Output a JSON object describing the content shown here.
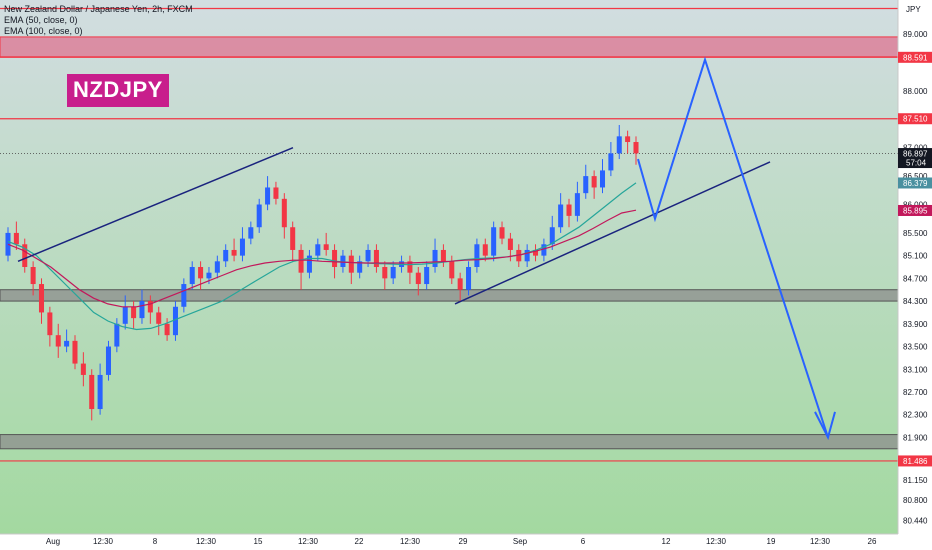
{
  "header": {
    "title": "New Zealand Dollar / Japanese Yen, 2h, FXCM",
    "indicators": [
      "EMA (50, close, 0)",
      "EMA (100, close, 0)"
    ]
  },
  "watermark": "NZDJPY",
  "colors": {
    "up": "#2962ff",
    "down": "#f23645",
    "ema50": "#26a69a",
    "ema100": "#c2185b",
    "resistance_line": "#f23645",
    "zone_pink": "#e06c8c",
    "zone_gray": "#8c8c8c",
    "bg_top": "#d2dde1",
    "bg_bottom": "#a3d9a0",
    "trendline": "#1a237e",
    "projection": "#2962ff",
    "current_price_tag": "#131722",
    "ema50_tag": "#4a90a0",
    "ema100_tag": "#c2185b"
  },
  "chart_data": {
    "type": "candlestick",
    "symbol": "NZDJPY",
    "timeframe": "2h",
    "ylim": [
      80.2,
      89.6
    ],
    "y_axis_unit": "JPY",
    "y_ticks": [
      "89.000",
      "88.000",
      "87.000",
      "86.500",
      "86.000",
      "85.500",
      "85.100",
      "84.700",
      "84.300",
      "83.900",
      "83.500",
      "83.100",
      "82.700",
      "82.300",
      "81.900",
      "81.150",
      "80.800",
      "80.440"
    ],
    "x_ticks": [
      "Aug",
      "12:30",
      "8",
      "12:30",
      "15",
      "12:30",
      "22",
      "12:30",
      "29",
      "Sep",
      "6",
      "12",
      "12:30",
      "19",
      "12:30",
      "26"
    ],
    "price_tags": [
      {
        "label": "88.591",
        "value": 88.591,
        "kind": "level"
      },
      {
        "label": "87.510",
        "value": 87.51,
        "kind": "level"
      },
      {
        "label": "86.897",
        "value": 86.897,
        "kind": "current",
        "sub": "57:04"
      },
      {
        "label": "86.379",
        "value": 86.379,
        "kind": "ema50"
      },
      {
        "label": "85.895",
        "value": 85.895,
        "kind": "ema100"
      },
      {
        "label": "81.486",
        "value": 81.486,
        "kind": "level"
      }
    ],
    "horizontal_levels": [
      89.45,
      88.591,
      87.51,
      81.486
    ],
    "zones": [
      {
        "from": 88.6,
        "to": 88.95,
        "color": "pink"
      },
      {
        "from": 84.3,
        "to": 84.5,
        "color": "gray"
      },
      {
        "from": 81.7,
        "to": 81.95,
        "color": "gray"
      }
    ],
    "candles": [
      [
        85.1,
        85.5,
        85.6,
        85.0
      ],
      [
        85.5,
        85.3,
        85.7,
        85.2
      ],
      [
        85.3,
        84.9,
        85.4,
        84.8
      ],
      [
        84.9,
        84.6,
        85.0,
        84.4
      ],
      [
        84.6,
        84.1,
        84.7,
        83.9
      ],
      [
        84.1,
        83.7,
        84.2,
        83.5
      ],
      [
        83.7,
        83.5,
        83.9,
        83.3
      ],
      [
        83.5,
        83.6,
        83.8,
        83.4
      ],
      [
        83.6,
        83.2,
        83.7,
        83.1
      ],
      [
        83.2,
        83.0,
        83.4,
        82.8
      ],
      [
        83.0,
        82.4,
        83.1,
        82.2
      ],
      [
        82.4,
        83.0,
        83.2,
        82.3
      ],
      [
        83.0,
        83.5,
        83.6,
        82.9
      ],
      [
        83.5,
        83.9,
        84.0,
        83.4
      ],
      [
        83.9,
        84.2,
        84.4,
        83.8
      ],
      [
        84.2,
        84.0,
        84.3,
        83.8
      ],
      [
        84.0,
        84.3,
        84.5,
        83.9
      ],
      [
        84.3,
        84.1,
        84.4,
        83.9
      ],
      [
        84.1,
        83.9,
        84.2,
        83.7
      ],
      [
        83.9,
        83.7,
        84.0,
        83.6
      ],
      [
        83.7,
        84.2,
        84.3,
        83.6
      ],
      [
        84.2,
        84.6,
        84.7,
        84.1
      ],
      [
        84.6,
        84.9,
        85.0,
        84.5
      ],
      [
        84.9,
        84.7,
        85.0,
        84.5
      ],
      [
        84.7,
        84.8,
        84.9,
        84.6
      ],
      [
        84.8,
        85.0,
        85.1,
        84.7
      ],
      [
        85.0,
        85.2,
        85.3,
        84.9
      ],
      [
        85.2,
        85.1,
        85.4,
        85.0
      ],
      [
        85.1,
        85.4,
        85.6,
        85.0
      ],
      [
        85.4,
        85.6,
        85.7,
        85.3
      ],
      [
        85.6,
        86.0,
        86.1,
        85.5
      ],
      [
        86.0,
        86.3,
        86.5,
        85.9
      ],
      [
        86.3,
        86.1,
        86.4,
        86.0
      ],
      [
        86.1,
        85.6,
        86.2,
        85.4
      ],
      [
        85.6,
        85.2,
        85.7,
        85.0
      ],
      [
        85.2,
        84.8,
        85.3,
        84.5
      ],
      [
        84.8,
        85.1,
        85.2,
        84.7
      ],
      [
        85.1,
        85.3,
        85.4,
        85.0
      ],
      [
        85.3,
        85.2,
        85.5,
        85.1
      ],
      [
        85.2,
        84.9,
        85.3,
        84.7
      ],
      [
        84.9,
        85.1,
        85.2,
        84.8
      ],
      [
        85.1,
        84.8,
        85.2,
        84.6
      ],
      [
        84.8,
        85.0,
        85.1,
        84.7
      ],
      [
        85.0,
        85.2,
        85.3,
        84.9
      ],
      [
        85.2,
        84.9,
        85.3,
        84.8
      ],
      [
        84.9,
        84.7,
        85.0,
        84.5
      ],
      [
        84.7,
        84.9,
        85.0,
        84.6
      ],
      [
        84.9,
        85.0,
        85.1,
        84.8
      ],
      [
        85.0,
        84.8,
        85.1,
        84.6
      ],
      [
        84.8,
        84.6,
        84.9,
        84.4
      ],
      [
        84.6,
        84.9,
        85.0,
        84.5
      ],
      [
        84.9,
        85.2,
        85.4,
        84.8
      ],
      [
        85.2,
        85.0,
        85.3,
        84.9
      ],
      [
        85.0,
        84.7,
        85.1,
        84.6
      ],
      [
        84.7,
        84.5,
        84.8,
        84.3
      ],
      [
        84.5,
        84.9,
        85.0,
        84.4
      ],
      [
        84.9,
        85.3,
        85.4,
        84.8
      ],
      [
        85.3,
        85.1,
        85.4,
        85.0
      ],
      [
        85.1,
        85.6,
        85.7,
        85.0
      ],
      [
        85.6,
        85.4,
        85.7,
        85.3
      ],
      [
        85.4,
        85.2,
        85.5,
        85.0
      ],
      [
        85.2,
        85.0,
        85.3,
        84.9
      ],
      [
        85.0,
        85.2,
        85.3,
        84.9
      ],
      [
        85.2,
        85.1,
        85.3,
        85.0
      ],
      [
        85.1,
        85.3,
        85.4,
        85.0
      ],
      [
        85.3,
        85.6,
        85.8,
        85.2
      ],
      [
        85.6,
        86.0,
        86.2,
        85.5
      ],
      [
        86.0,
        85.8,
        86.1,
        85.6
      ],
      [
        85.8,
        86.2,
        86.4,
        85.7
      ],
      [
        86.2,
        86.5,
        86.7,
        86.1
      ],
      [
        86.5,
        86.3,
        86.6,
        86.1
      ],
      [
        86.3,
        86.6,
        86.8,
        86.2
      ],
      [
        86.6,
        86.9,
        87.1,
        86.5
      ],
      [
        86.9,
        87.2,
        87.4,
        86.8
      ],
      [
        87.2,
        87.1,
        87.3,
        86.9
      ],
      [
        87.1,
        86.9,
        87.2,
        86.7
      ]
    ],
    "ema50": [
      85.35,
      85.25,
      85.1,
      84.85,
      84.6,
      84.35,
      84.1,
      83.95,
      83.85,
      83.8,
      83.82,
      83.9,
      84.0,
      84.1,
      84.2,
      84.3,
      84.45,
      84.6,
      84.75,
      84.9,
      85.0,
      85.05,
      85.05,
      85.0,
      84.98,
      84.97,
      84.96,
      84.95,
      84.94,
      84.95,
      84.97,
      85.0,
      85.03,
      85.05,
      85.06,
      85.08,
      85.12,
      85.2,
      85.3,
      85.45,
      85.6,
      85.8,
      86.0,
      86.2,
      86.38
    ],
    "ema100": [
      85.3,
      85.2,
      85.05,
      84.9,
      84.7,
      84.5,
      84.35,
      84.25,
      84.2,
      84.2,
      84.25,
      84.35,
      84.45,
      84.55,
      84.65,
      84.75,
      84.85,
      84.92,
      84.97,
      85.0,
      85.02,
      85.02,
      85.0,
      84.99,
      84.98,
      84.97,
      84.97,
      84.97,
      84.97,
      84.98,
      84.99,
      85.0,
      85.02,
      85.03,
      85.05,
      85.08,
      85.12,
      85.18,
      85.25,
      85.35,
      85.45,
      85.58,
      85.72,
      85.85,
      85.9
    ]
  }
}
